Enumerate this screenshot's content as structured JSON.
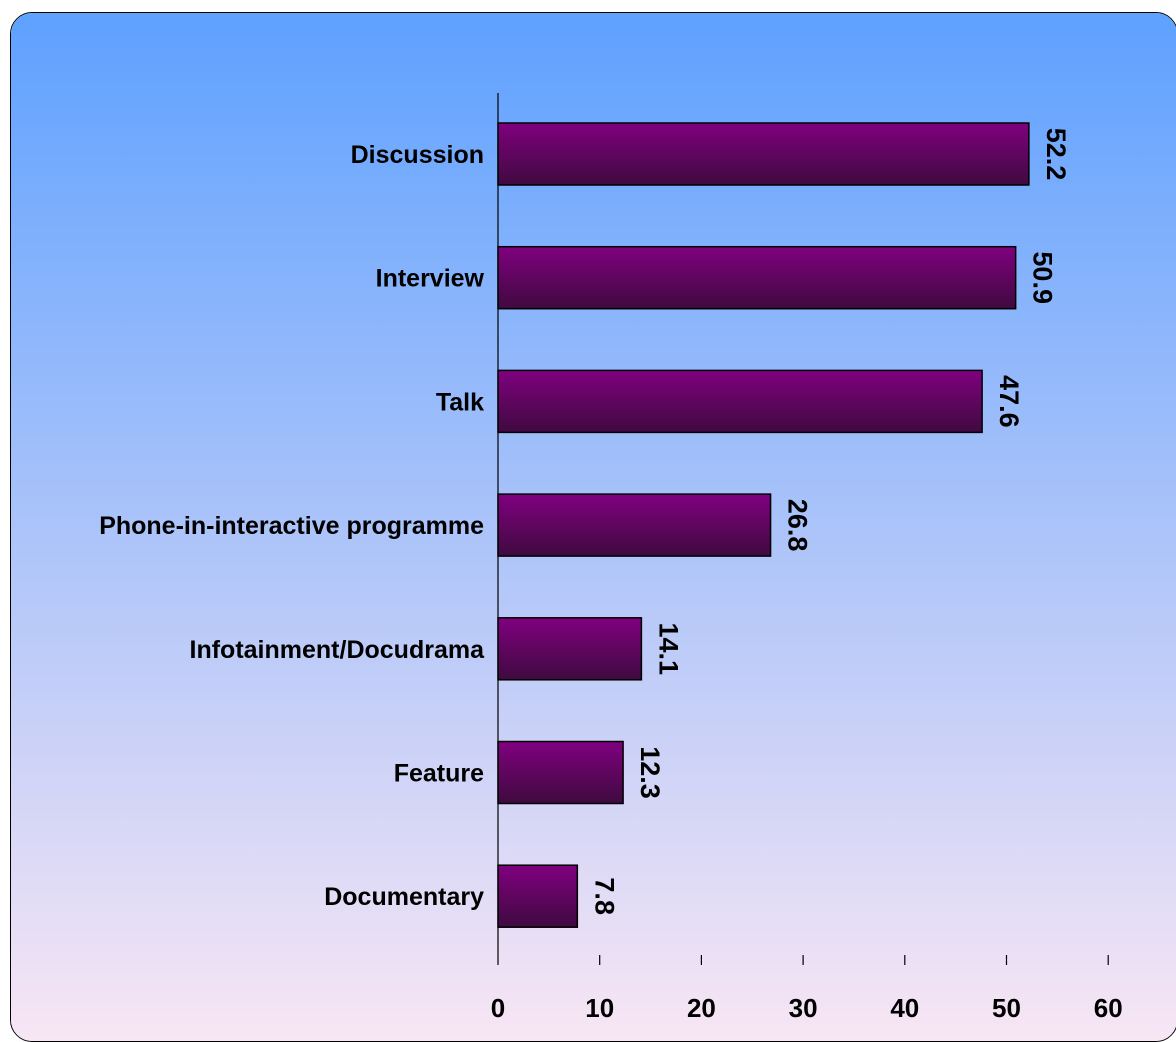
{
  "colors": {
    "background_top": "#5ea1ff",
    "background_bottom": "#f8e6f4",
    "bar_top": "#800080",
    "bar_bottom": "#3f0a3f",
    "axis": "#000000"
  },
  "chart_data": {
    "type": "bar",
    "orientation": "horizontal",
    "categories": [
      "Discussion",
      "Interview",
      "Talk",
      "Phone-in-interactive programme",
      "Infotainment/Docudrama",
      "Feature",
      "Documentary"
    ],
    "values": [
      52.2,
      50.9,
      47.6,
      26.8,
      14.1,
      12.3,
      7.8
    ],
    "data_labels": [
      "52.2",
      "50.9",
      "47.6",
      "26.8",
      "14.1",
      "12.3",
      "7.8"
    ],
    "xlim": [
      0,
      60
    ],
    "ticks": [
      0,
      10,
      20,
      30,
      40,
      50,
      60
    ],
    "tick_labels": [
      "0",
      "10",
      "20",
      "30",
      "40",
      "50",
      "60"
    ],
    "title": "",
    "xlabel": "",
    "ylabel": "",
    "grid": false,
    "legend": "none"
  }
}
